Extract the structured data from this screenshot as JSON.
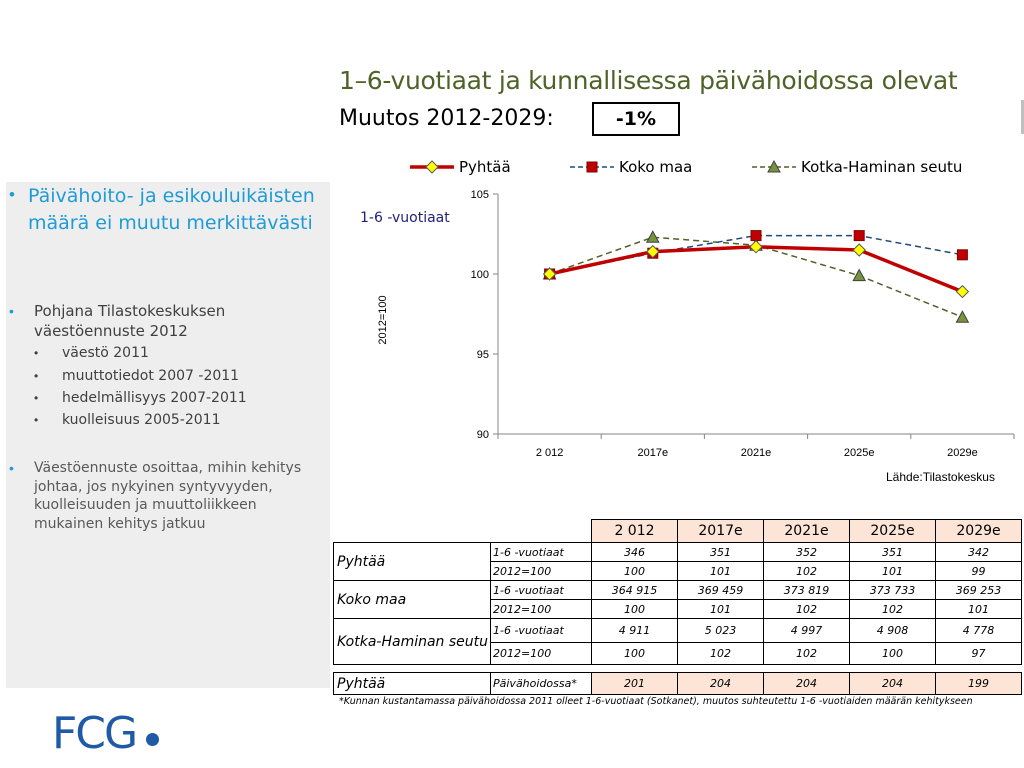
{
  "slide": {
    "title": "1–6-vuotiaat ja kunnallisessa päivähoidossa olevat",
    "subtitle": "Muutos 2012-2029:",
    "change": "-1%",
    "source": "Lähde:Tilastokeskus",
    "footnote": "*Kunnan kustantamassa päivähoidossa 2011 olleet 1-6-vuotiaat (Sotkanet), muutos suhteutettu 1-6 -vuotiaiden määrän kehitykseen",
    "logo_text": "FCG"
  },
  "bullets": {
    "first": "Päivähoito- ja esikouluikäisten määrä ei muutu merkittävästi",
    "second": "Pohjana Tilastokeskuksen väestöennuste 2012",
    "second_sub": [
      "väestö 2011",
      "muuttotiedot 2007 -2011",
      "hedelmällisyys 2007-2011",
      "kuolleisuus 2005-2011"
    ],
    "third": "Väestöennuste osoittaa, mihin kehitys johtaa, jos nykyinen syntyvyyden, kuolleisuuden ja muuttoliikkeen mukainen kehitys jatkuu",
    "bullet_symbol": "•",
    "sub_symbol": "•"
  },
  "chart_data": {
    "type": "line",
    "title": "",
    "annotation": "1-6 -vuotiaat",
    "ylabel": "2012=100",
    "ylim": [
      90,
      105
    ],
    "yticks": [
      90,
      95,
      100,
      105
    ],
    "grid": false,
    "legend_position": "top",
    "categories": [
      "2 012",
      "2017e",
      "2021e",
      "2025e",
      "2029e"
    ],
    "series": [
      {
        "name": "Pyhtää",
        "values": [
          100,
          101.4,
          101.7,
          101.5,
          98.9
        ],
        "color": "#c00000",
        "marker": "diamond",
        "marker_fill": "#ffff00",
        "style": "solid"
      },
      {
        "name": "Koko maa",
        "values": [
          100,
          101.3,
          102.4,
          102.4,
          101.2
        ],
        "color": "#1f497d",
        "marker": "square",
        "marker_fill": "#c00000",
        "style": "dashed"
      },
      {
        "name": "Kotka-Haminan seutu",
        "values": [
          100,
          102.3,
          101.8,
          99.9,
          97.3
        ],
        "color": "#4f6228",
        "marker": "triangle",
        "marker_fill": "#77933c",
        "style": "dashed"
      }
    ]
  },
  "table": {
    "years": [
      "2 012",
      "2017e",
      "2021e",
      "2025e",
      "2029e"
    ],
    "groups": [
      {
        "region": "Pyhtää",
        "rows": [
          {
            "metric": "1-6 -vuotiaat",
            "values": [
              "346",
              "351",
              "352",
              "351",
              "342"
            ]
          },
          {
            "metric": "2012=100",
            "values": [
              "100",
              "101",
              "102",
              "101",
              "99"
            ]
          }
        ]
      },
      {
        "region": "Koko maa",
        "rows": [
          {
            "metric": "1-6 -vuotiaat",
            "values": [
              "364 915",
              "369 459",
              "373 819",
              "373 733",
              "369 253"
            ]
          },
          {
            "metric": "2012=100",
            "values": [
              "100",
              "101",
              "102",
              "102",
              "101"
            ]
          }
        ]
      },
      {
        "region": "Kotka-Haminan seutu",
        "rows": [
          {
            "metric": "1-6 -vuotiaat",
            "values": [
              "4 911",
              "5 023",
              "4 997",
              "4 908",
              "4 778"
            ]
          },
          {
            "metric": "2012=100",
            "values": [
              "100",
              "102",
              "102",
              "100",
              "97"
            ]
          }
        ]
      }
    ],
    "daycare": {
      "region": "Pyhtää",
      "metric": "Päivähoidossa*",
      "values": [
        "201",
        "204",
        "204",
        "204",
        "199"
      ]
    }
  }
}
